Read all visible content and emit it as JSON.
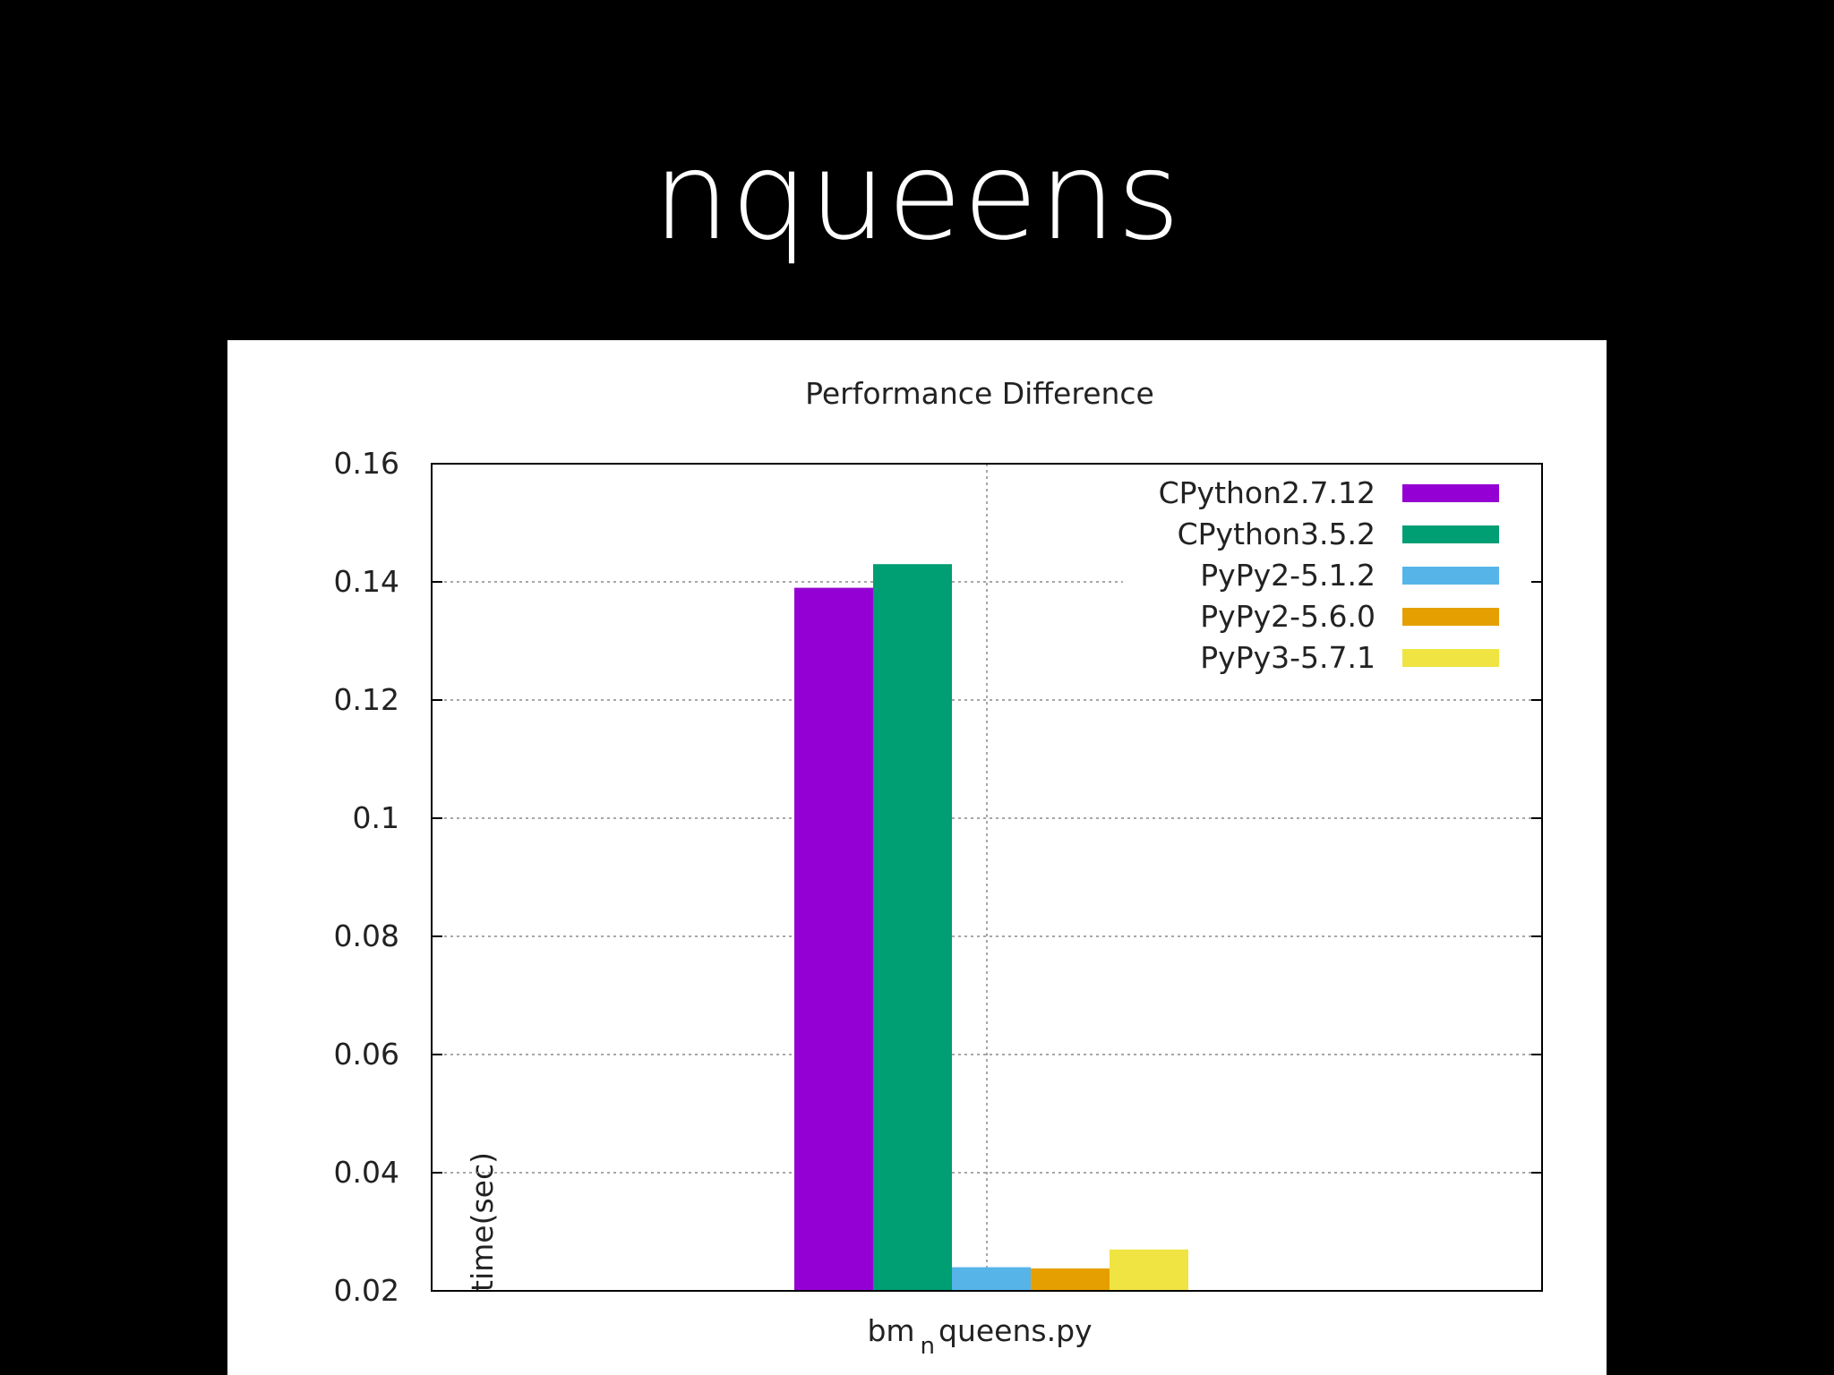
{
  "slide": {
    "title": "nqueens"
  },
  "chart_data": {
    "type": "bar",
    "title": "Performance Difference",
    "ylabel": "time(sec)",
    "categories": [
      "bm_nqueens.py"
    ],
    "category_label": {
      "main_prefix": "bm",
      "subscript": "n",
      "main_suffix": "queens.py"
    },
    "ylim": [
      0.02,
      0.16
    ],
    "yticks": [
      "0.02",
      "0.04",
      "0.06",
      "0.08",
      "0.1",
      "0.12",
      "0.14",
      "0.16"
    ],
    "ytick_values": [
      0.02,
      0.04,
      0.06,
      0.08,
      0.1,
      0.12,
      0.14,
      0.16
    ],
    "grid": true,
    "legend_position": "top-right",
    "series": [
      {
        "name": "CPython2.7.12",
        "color": "#9400d3",
        "values": [
          0.139
        ]
      },
      {
        "name": "CPython3.5.2",
        "color": "#009e73",
        "values": [
          0.143
        ]
      },
      {
        "name": "PyPy2-5.1.2",
        "color": "#56b4e9",
        "values": [
          0.024
        ]
      },
      {
        "name": "PyPy2-5.6.0",
        "color": "#e69f00",
        "values": [
          0.0238
        ]
      },
      {
        "name": "PyPy3-5.7.1",
        "color": "#f0e442",
        "values": [
          0.027
        ]
      }
    ]
  }
}
